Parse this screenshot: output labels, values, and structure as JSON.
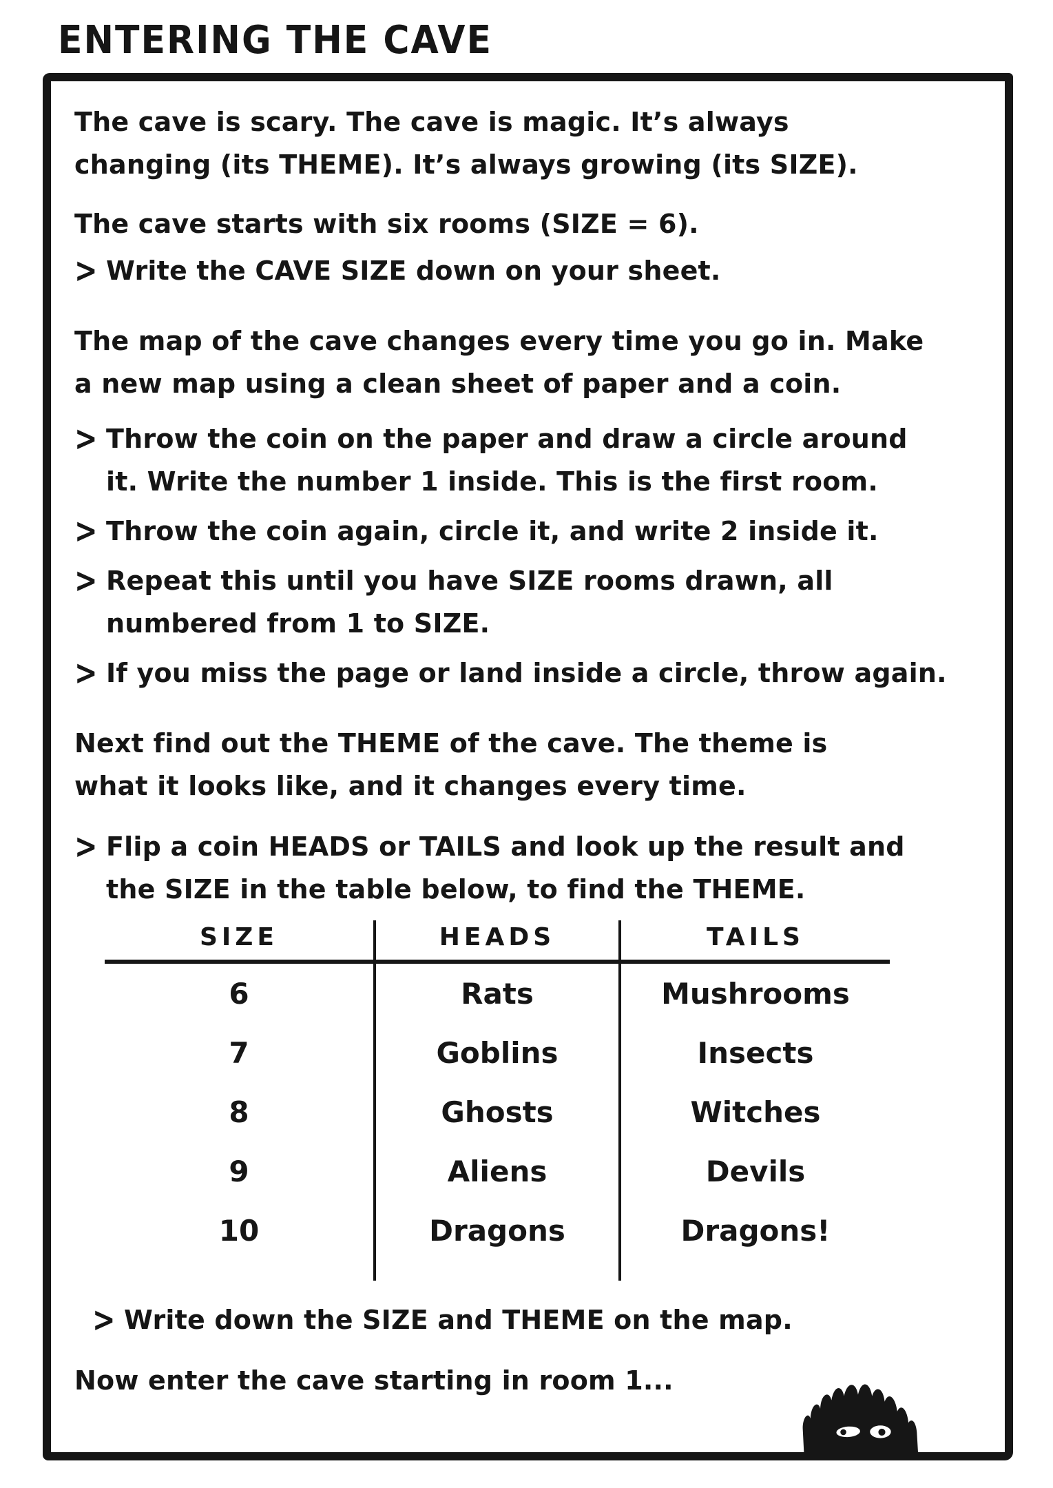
{
  "title": "ENTERING THE CAVE",
  "bullet_char": ">",
  "colors": {
    "ink": "#161616",
    "paper": "#ffffff"
  },
  "icons": {
    "creature": "cave-monster-peeking-icon"
  },
  "blocks": [
    {
      "type": "text",
      "lines": [
        "The cave is scary. The cave is magic. It’s always",
        "changing (its THEME). It’s always growing (its SIZE)."
      ]
    },
    {
      "type": "text",
      "lines": [
        "The cave starts with six rooms (SIZE = 6)."
      ]
    },
    {
      "type": "bullet",
      "lines": [
        "Write the CAVE SIZE down on your sheet."
      ]
    },
    {
      "type": "text",
      "lines": [
        "The map of the cave changes every time you go in. Make",
        "a new map using a clean sheet of paper and a coin."
      ]
    },
    {
      "type": "bullet",
      "lines": [
        "Throw the coin on the paper and draw a circle around",
        "it. Write the number 1 inside. This is the first room."
      ]
    },
    {
      "type": "bullet",
      "lines": [
        "Throw the coin again, circle it, and write 2 inside it."
      ]
    },
    {
      "type": "bullet",
      "lines": [
        "Repeat this until you have SIZE rooms drawn, all",
        "numbered from 1 to SIZE."
      ]
    },
    {
      "type": "bullet",
      "lines": [
        "If you miss the page or land inside a circle, throw again."
      ]
    },
    {
      "type": "text",
      "lines": [
        "Next find out the THEME of the cave. The theme is",
        "what it looks like, and it changes every time."
      ]
    },
    {
      "type": "bullet",
      "lines": [
        "Flip a coin HEADS or TAILS and look up the result and",
        "the SIZE in the table below, to find the THEME."
      ]
    },
    {
      "type": "table",
      "headers": [
        "SIZE",
        "HEADS",
        "TAILS"
      ],
      "rows": [
        [
          "6",
          "Rats",
          "Mushrooms"
        ],
        [
          "7",
          "Goblins",
          "Insects"
        ],
        [
          "8",
          "Ghosts",
          "Witches"
        ],
        [
          "9",
          "Aliens",
          "Devils"
        ],
        [
          "10",
          "Dragons",
          "Dragons!"
        ]
      ]
    },
    {
      "type": "bullet",
      "lines": [
        "Write down the SIZE and THEME on the map."
      ]
    },
    {
      "type": "text",
      "lines": [
        "Now enter the cave starting in room 1..."
      ]
    }
  ]
}
